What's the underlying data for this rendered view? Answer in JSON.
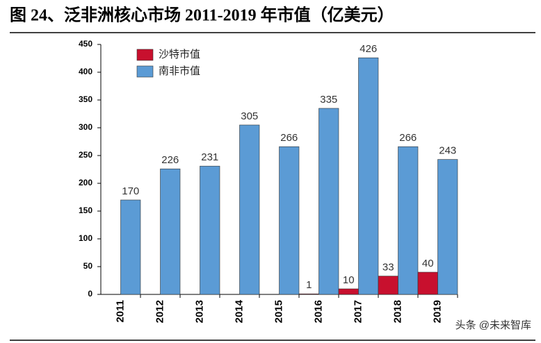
{
  "chart_data": {
    "type": "bar",
    "title": "图 24、泛非洲核心市场 2011-2019 年市值（亿美元）",
    "categories": [
      "2011",
      "2012",
      "2013",
      "2014",
      "2015",
      "2016",
      "2017",
      "2018",
      "2019"
    ],
    "series": [
      {
        "name": "沙特市值",
        "color": "#c8102e",
        "values": [
          null,
          null,
          null,
          null,
          null,
          1,
          10,
          33,
          40
        ]
      },
      {
        "name": "南非市值",
        "color": "#5b9bd5",
        "values": [
          170,
          226,
          231,
          305,
          266,
          335,
          426,
          266,
          243
        ]
      }
    ],
    "ylim": [
      0,
      450
    ],
    "yticks": [
      0,
      50,
      100,
      150,
      200,
      250,
      300,
      350,
      400,
      450
    ],
    "legend": "upper-left",
    "watermark": "头条 @未来智库"
  }
}
